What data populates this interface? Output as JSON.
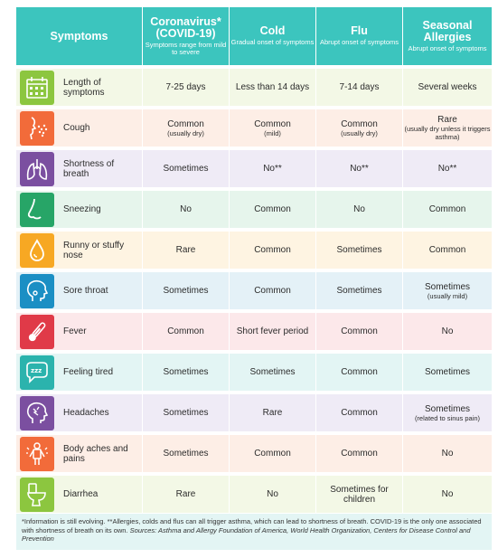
{
  "header": {
    "symptoms_label": "Symptoms",
    "columns": [
      {
        "title": "Coronavirus* (COVID-19)",
        "subtitle": "Symptoms range from mild to severe"
      },
      {
        "title": "Cold",
        "subtitle": "Gradual onset of symptoms"
      },
      {
        "title": "Flu",
        "subtitle": "Abrupt onset of symptoms"
      },
      {
        "title": "Seasonal Allergies",
        "subtitle": "Abrupt onset of symptoms"
      }
    ]
  },
  "colors": {
    "header_bg": "#3cc5be",
    "rows": [
      {
        "bg": "#f3f8e6",
        "icon": "#8cc63f"
      },
      {
        "bg": "#fdeee6",
        "icon": "#f26b3a"
      },
      {
        "bg": "#efebf6",
        "icon": "#7b4fa0"
      },
      {
        "bg": "#e6f5ec",
        "icon": "#27a567"
      },
      {
        "bg": "#fef4e2",
        "icon": "#f7a823"
      },
      {
        "bg": "#e4f1f7",
        "icon": "#1b8fc4"
      },
      {
        "bg": "#fce8ea",
        "icon": "#e03a48"
      },
      {
        "bg": "#e3f5f4",
        "icon": "#2bb3ad"
      },
      {
        "bg": "#efebf6",
        "icon": "#7b4fa0"
      },
      {
        "bg": "#fdeee6",
        "icon": "#f26b3a"
      },
      {
        "bg": "#f3f8e6",
        "icon": "#8cc63f"
      }
    ]
  },
  "rows": [
    {
      "icon": "calendar-icon",
      "symptom": "Length of symptoms",
      "covid": "7-25 days",
      "covid_note": "",
      "cold": "Less than 14 days",
      "cold_note": "",
      "flu": "7-14 days",
      "flu_note": "",
      "allergy": "Several weeks",
      "allergy_note": ""
    },
    {
      "icon": "cough-icon",
      "symptom": "Cough",
      "covid": "Common",
      "covid_note": "(usually dry)",
      "cold": "Common",
      "cold_note": "(mild)",
      "flu": "Common",
      "flu_note": "(usually dry)",
      "allergy": "Rare",
      "allergy_note": "(usually dry unless it triggers asthma)"
    },
    {
      "icon": "lungs-icon",
      "symptom": "Shortness of breath",
      "covid": "Sometimes",
      "covid_note": "",
      "cold": "No**",
      "cold_note": "",
      "flu": "No**",
      "flu_note": "",
      "allergy": "No**",
      "allergy_note": ""
    },
    {
      "icon": "nose-icon",
      "symptom": "Sneezing",
      "covid": "No",
      "covid_note": "",
      "cold": "Common",
      "cold_note": "",
      "flu": "No",
      "flu_note": "",
      "allergy": "Common",
      "allergy_note": ""
    },
    {
      "icon": "droplet-icon",
      "symptom": "Runny or stuffy nose",
      "covid": "Rare",
      "covid_note": "",
      "cold": "Common",
      "cold_note": "",
      "flu": "Sometimes",
      "flu_note": "",
      "allergy": "Common",
      "allergy_note": ""
    },
    {
      "icon": "sore-throat-icon",
      "symptom": "Sore throat",
      "covid": "Sometimes",
      "covid_note": "",
      "cold": "Common",
      "cold_note": "",
      "flu": "Sometimes",
      "flu_note": "",
      "allergy": "Sometimes",
      "allergy_note": "(usually mild)"
    },
    {
      "icon": "thermometer-icon",
      "symptom": "Fever",
      "covid": "Common",
      "covid_note": "",
      "cold": "Short fever period",
      "cold_note": "",
      "flu": "Common",
      "flu_note": "",
      "allergy": "No",
      "allergy_note": ""
    },
    {
      "icon": "sleep-bubble-icon",
      "symptom": "Feeling tired",
      "covid": "Sometimes",
      "covid_note": "",
      "cold": "Sometimes",
      "cold_note": "",
      "flu": "Common",
      "flu_note": "",
      "allergy": "Sometimes",
      "allergy_note": ""
    },
    {
      "icon": "headache-icon",
      "symptom": "Headaches",
      "covid": "Sometimes",
      "covid_note": "",
      "cold": "Rare",
      "cold_note": "",
      "flu": "Common",
      "flu_note": "",
      "allergy": "Sometimes",
      "allergy_note": "(related to sinus pain)"
    },
    {
      "icon": "body-aches-icon",
      "symptom": "Body aches and pains",
      "covid": "Sometimes",
      "covid_note": "",
      "cold": "Common",
      "cold_note": "",
      "flu": "Common",
      "flu_note": "",
      "allergy": "No",
      "allergy_note": ""
    },
    {
      "icon": "toilet-icon",
      "symptom": "Diarrhea",
      "covid": "Rare",
      "covid_note": "",
      "cold": "No",
      "cold_note": "",
      "flu": "Sometimes for children",
      "flu_note": "",
      "allergy": "No",
      "allergy_note": ""
    }
  ],
  "footer": {
    "text": "*Information is still evolving. **Allergies, colds and flus can all trigger asthma, which can lead to shortness of breath. COVID-19 is the only one associated with shortness of breath on its own.",
    "sources": "Sources: Asthma and Allergy Foundation of America, World Health Organization, Centers for Disease Control and Prevention"
  }
}
